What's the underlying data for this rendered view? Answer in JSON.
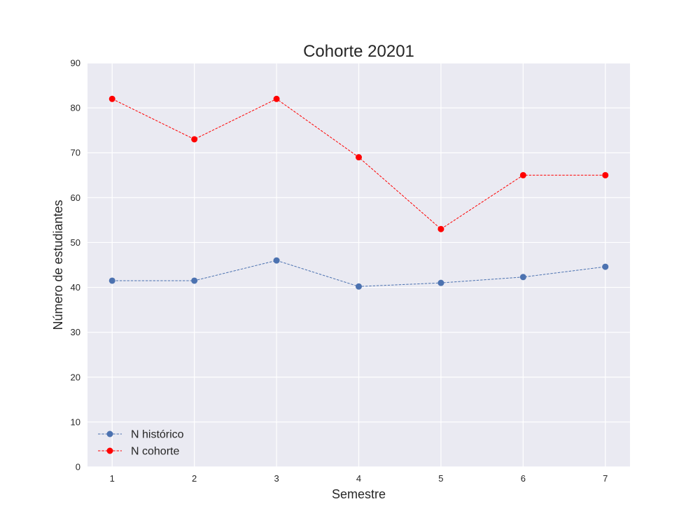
{
  "chart_data": {
    "type": "line",
    "title": "Cohorte 20201",
    "xlabel": "Semestre",
    "ylabel": "Número de estudiantes",
    "x": [
      1,
      2,
      3,
      4,
      5,
      6,
      7
    ],
    "xlim": [
      0.7,
      7.3
    ],
    "ylim": [
      0,
      90
    ],
    "yticks": [
      0,
      10,
      20,
      30,
      40,
      50,
      60,
      70,
      80,
      90
    ],
    "grid": true,
    "legend_position": "lower-left",
    "series": [
      {
        "name": "N histórico",
        "color": "#4c72b0",
        "line_style": "dashed",
        "values": [
          41.5,
          41.5,
          46.0,
          40.2,
          41.0,
          42.3,
          44.6
        ]
      },
      {
        "name": "N cohorte",
        "color": "#ff0000",
        "line_style": "dashed",
        "values": [
          82,
          73,
          82,
          69,
          53,
          65,
          65
        ]
      }
    ],
    "colors": {
      "plot_background": "#eaeaf2",
      "grid": "#ffffff"
    }
  }
}
